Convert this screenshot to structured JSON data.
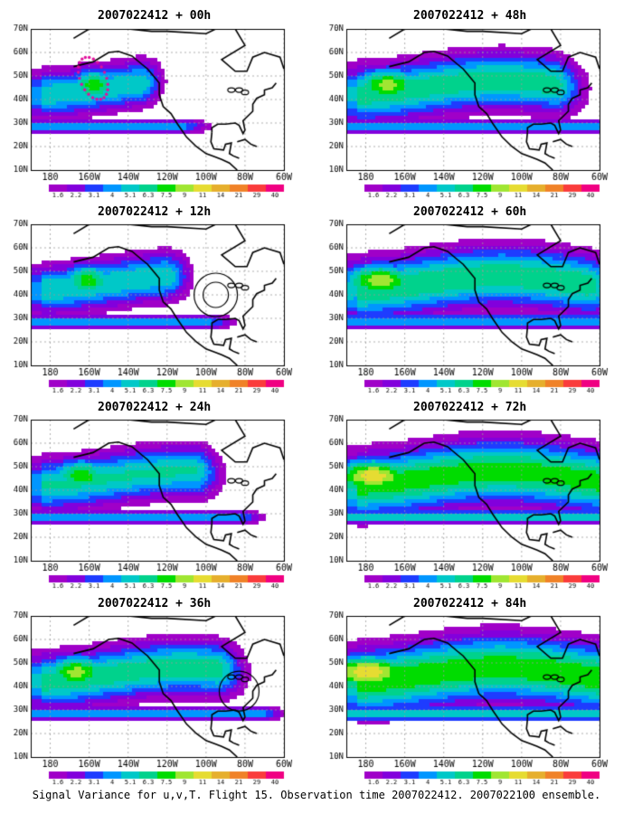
{
  "caption": "Signal Variance for u,v,T. Flight 15. Observation time 2007022412. 2007022100 ensemble.",
  "axes": {
    "lat_labels": [
      "10N",
      "20N",
      "30N",
      "40N",
      "50N",
      "60N",
      "70N"
    ],
    "lon_labels": [
      "180",
      "160W",
      "140W",
      "120W",
      "100W",
      "80W",
      "60W"
    ]
  },
  "colorbar": {
    "labels": [
      "1.6",
      "2.2",
      "3.1",
      "4",
      "5.1",
      "6.3",
      "7.5",
      "9",
      "11",
      "14",
      "21",
      "29",
      "40"
    ],
    "colors": [
      "#a000c8",
      "#8200dc",
      "#1e3cff",
      "#0096ff",
      "#00c8c8",
      "#00d28c",
      "#00dc00",
      "#a0e632",
      "#e6dc32",
      "#e6af2d",
      "#f08228",
      "#fa3c3c",
      "#f00082"
    ]
  },
  "panels": [
    {
      "title": "2007022412 + 00h",
      "col": 0,
      "row": 0,
      "spread": 0.1,
      "intensity": 0.7,
      "markers": [
        "dots"
      ]
    },
    {
      "title": "2007022412 + 12h",
      "col": 0,
      "row": 1,
      "spread": 0.22,
      "intensity": 0.7,
      "markers": [
        "circle"
      ]
    },
    {
      "title": "2007022412 + 24h",
      "col": 0,
      "row": 2,
      "spread": 0.35,
      "intensity": 0.72,
      "markers": []
    },
    {
      "title": "2007022412 + 36h",
      "col": 0,
      "row": 3,
      "spread": 0.45,
      "intensity": 0.78,
      "markers": [
        "circle-small"
      ]
    },
    {
      "title": "2007022412 + 48h",
      "col": 1,
      "row": 0,
      "spread": 0.55,
      "intensity": 0.78,
      "markers": []
    },
    {
      "title": "2007022412 + 60h",
      "col": 1,
      "row": 1,
      "spread": 0.7,
      "intensity": 0.8,
      "markers": []
    },
    {
      "title": "2007022412 + 72h",
      "col": 1,
      "row": 2,
      "spread": 0.85,
      "intensity": 0.88,
      "markers": []
    },
    {
      "title": "2007022412 + 84h",
      "col": 1,
      "row": 3,
      "spread": 0.95,
      "intensity": 0.9,
      "markers": []
    }
  ]
}
